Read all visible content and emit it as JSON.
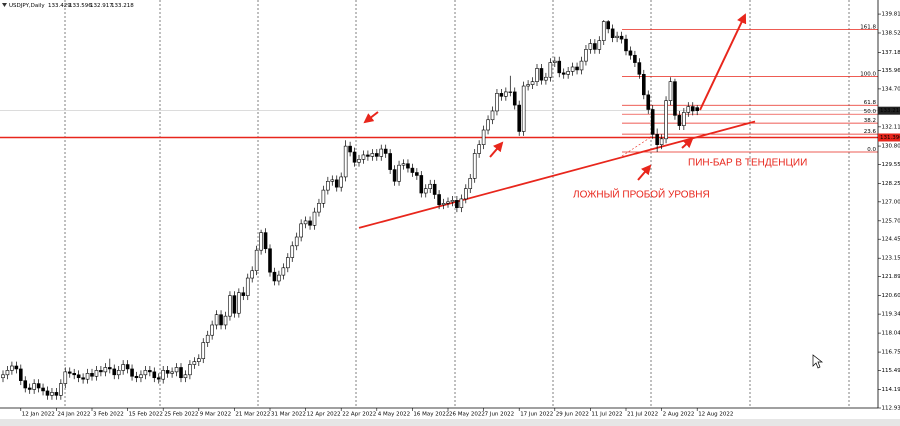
{
  "chart_data": {
    "type": "candlestick",
    "title": "USDJPY,Daily",
    "quote": [
      "133.429",
      "133.596",
      "132.917",
      "133.218"
    ],
    "categories": [
      null,
      null,
      null,
      null,
      "12 Jan 2022",
      null,
      null,
      null,
      null,
      null,
      null,
      null,
      "24 Jan 2022",
      null,
      null,
      null,
      null,
      null,
      null,
      null,
      "3 Feb 2022",
      null,
      null,
      null,
      null,
      null,
      null,
      null,
      "15 Feb 2022",
      null,
      null,
      null,
      null,
      null,
      null,
      null,
      "25 Feb 2022",
      null,
      null,
      null,
      null,
      null,
      null,
      null,
      "9 Mar 2022",
      null,
      null,
      null,
      null,
      null,
      null,
      null,
      "21 Mar 2022",
      null,
      null,
      null,
      null,
      null,
      null,
      null,
      "31 Mar 2022",
      null,
      null,
      null,
      null,
      null,
      null,
      null,
      "12 Apr 2022",
      null,
      null,
      null,
      null,
      null,
      null,
      null,
      "22 Apr 2022",
      null,
      null,
      null,
      null,
      null,
      null,
      null,
      "4 May 2022",
      null,
      null,
      null,
      null,
      null,
      null,
      null,
      "16 May 2022",
      null,
      null,
      null,
      null,
      null,
      null,
      null,
      "26 May 2022",
      null,
      null,
      null,
      null,
      null,
      null,
      null,
      "7 Jun 2022",
      null,
      null,
      null,
      null,
      null,
      null,
      null,
      "17 Jun 2022",
      null,
      null,
      null,
      null,
      null,
      null,
      null,
      "29 Jun 2022",
      null,
      null,
      null,
      null,
      null,
      null,
      null,
      "11 Jul 2022",
      null,
      null,
      null,
      null,
      null,
      null,
      null,
      "21 Jul 2022",
      null,
      null,
      null,
      null,
      null,
      null,
      null,
      "2 Aug 2022",
      null,
      null,
      null,
      null,
      null,
      null,
      null,
      "12 Aug 2022"
    ],
    "open": [
      115.0,
      115.2,
      115.5,
      115.8,
      115.6,
      114.8,
      114.3,
      114.2,
      114.6,
      114.3,
      114.1,
      113.8,
      114.0,
      113.8,
      114.6,
      115.4,
      115.3,
      115.2,
      115.0,
      114.9,
      115.3,
      115.1,
      115.5,
      115.4,
      115.7,
      115.6,
      115.2,
      115.5,
      115.9,
      115.6,
      115.1,
      115.0,
      115.2,
      115.5,
      115.4,
      115.0,
      114.9,
      115.5,
      115.3,
      115.4,
      115.7,
      115.0,
      115.2,
      115.9,
      116.1,
      116.3,
      117.4,
      117.9,
      118.6,
      119.3,
      118.6,
      119.2,
      120.6,
      119.4,
      120.8,
      120.6,
      121.8,
      122.3,
      123.7,
      124.9,
      123.8,
      122.2,
      121.6,
      122.0,
      122.5,
      123.2,
      124.0,
      124.6,
      125.5,
      125.7,
      125.4,
      126.3,
      126.9,
      127.8,
      128.4,
      128.5,
      128.0,
      128.7,
      130.8,
      130.4,
      129.7,
      129.9,
      130.2,
      130.1,
      130.3,
      130.1,
      130.6,
      130.3,
      129.2,
      128.4,
      129.5,
      129.6,
      129.3,
      129.0,
      128.8,
      127.6,
      127.9,
      128.2,
      127.5,
      126.8,
      126.9,
      127.0,
      127.1,
      126.6,
      127.2,
      127.9,
      128.6,
      130.3,
      130.9,
      131.9,
      132.6,
      133.2,
      134.4,
      134.2,
      134.5,
      134.5,
      133.6,
      131.8,
      134.9,
      135.0,
      135.2,
      136.1,
      135.3,
      135.5,
      136.5,
      136.6,
      135.8,
      135.7,
      135.9,
      136.2,
      136.0,
      136.6,
      137.4,
      137.8,
      137.4,
      138.0,
      139.3,
      138.8,
      138.2,
      138.3,
      138.1,
      137.3,
      137.0,
      136.5,
      135.7,
      134.3,
      133.3,
      131.6,
      130.9,
      131.3,
      133.9,
      135.2,
      132.9,
      132.2,
      133.1,
      133.5,
      133.429
    ],
    "high": [
      115.5,
      115.8,
      116.1,
      116.1,
      115.9,
      115.1,
      114.6,
      114.9,
      114.9,
      114.6,
      114.4,
      114.3,
      114.3,
      114.9,
      115.7,
      115.7,
      115.6,
      115.5,
      115.3,
      115.6,
      115.6,
      115.8,
      115.8,
      116.0,
      116.3,
      115.9,
      115.8,
      116.2,
      116.2,
      115.9,
      115.4,
      115.5,
      115.8,
      115.8,
      115.7,
      115.3,
      115.8,
      115.8,
      115.7,
      116.0,
      116.0,
      115.5,
      116.2,
      116.4,
      116.6,
      117.7,
      118.2,
      118.9,
      119.6,
      119.6,
      119.5,
      120.9,
      120.9,
      121.1,
      121.2,
      122.1,
      122.6,
      124.0,
      125.1,
      125.2,
      124.1,
      122.5,
      122.3,
      122.8,
      123.5,
      124.3,
      124.9,
      125.8,
      126.0,
      126.0,
      126.6,
      127.2,
      128.1,
      128.7,
      128.8,
      128.8,
      129.0,
      131.2,
      131.1,
      130.7,
      130.2,
      130.5,
      130.5,
      130.6,
      130.6,
      130.9,
      130.9,
      130.6,
      129.5,
      129.8,
      129.9,
      129.9,
      129.6,
      129.3,
      129.1,
      128.2,
      128.5,
      128.5,
      127.8,
      127.2,
      127.3,
      127.4,
      127.4,
      127.5,
      128.2,
      128.9,
      130.6,
      131.2,
      132.2,
      132.9,
      133.5,
      134.7,
      134.7,
      134.8,
      135.6,
      134.8,
      133.9,
      135.2,
      135.3,
      135.5,
      136.4,
      136.4,
      135.8,
      136.8,
      136.9,
      136.9,
      136.1,
      136.2,
      136.5,
      136.5,
      136.9,
      137.7,
      138.1,
      138.1,
      138.3,
      139.4,
      139.4,
      139.1,
      138.6,
      138.6,
      138.4,
      137.6,
      137.3,
      136.8,
      136.0,
      134.6,
      133.6,
      132.0,
      131.6,
      134.2,
      135.5,
      135.4,
      133.2,
      133.4,
      133.8,
      133.8,
      133.596
    ],
    "low": [
      114.7,
      114.9,
      115.2,
      115.3,
      114.5,
      114.0,
      113.9,
      113.9,
      114.0,
      113.8,
      113.5,
      113.5,
      113.5,
      113.5,
      114.3,
      115.0,
      114.9,
      114.7,
      114.6,
      114.6,
      114.8,
      114.8,
      115.1,
      115.1,
      115.3,
      114.9,
      114.9,
      115.2,
      115.3,
      114.8,
      114.7,
      114.7,
      114.9,
      115.1,
      114.7,
      114.6,
      114.6,
      115.0,
      115.0,
      115.1,
      114.7,
      114.7,
      114.9,
      115.6,
      115.8,
      116.0,
      117.1,
      117.6,
      118.3,
      118.3,
      118.3,
      118.9,
      119.1,
      119.1,
      120.3,
      120.3,
      121.5,
      122.0,
      123.4,
      123.5,
      121.9,
      121.3,
      121.3,
      121.7,
      122.2,
      122.9,
      123.7,
      124.3,
      125.2,
      125.1,
      125.1,
      126.0,
      126.6,
      127.5,
      128.1,
      127.7,
      127.7,
      128.4,
      130.1,
      129.4,
      129.4,
      129.6,
      129.8,
      129.8,
      129.8,
      129.8,
      130.0,
      128.9,
      128.1,
      128.1,
      129.2,
      129.0,
      128.7,
      128.5,
      127.3,
      127.3,
      127.6,
      127.2,
      126.5,
      126.5,
      126.6,
      126.7,
      126.3,
      126.3,
      126.9,
      127.6,
      128.3,
      130.0,
      130.6,
      131.6,
      132.3,
      132.9,
      133.9,
      133.9,
      134.2,
      133.3,
      131.5,
      131.5,
      134.6,
      134.7,
      134.9,
      135.0,
      135.0,
      135.2,
      136.2,
      135.5,
      135.4,
      135.4,
      135.6,
      135.7,
      135.7,
      136.3,
      137.1,
      137.1,
      137.1,
      137.7,
      138.5,
      137.9,
      137.9,
      137.8,
      137.0,
      136.7,
      136.2,
      135.4,
      134.0,
      133.0,
      131.3,
      130.4,
      130.6,
      131.0,
      133.6,
      132.6,
      131.9,
      131.9,
      132.8,
      132.9,
      132.917
    ],
    "close": [
      115.2,
      115.5,
      115.8,
      115.6,
      114.8,
      114.3,
      114.2,
      114.6,
      114.3,
      114.1,
      113.8,
      114.0,
      113.8,
      114.6,
      115.4,
      115.3,
      115.2,
      115.0,
      114.9,
      115.3,
      115.1,
      115.5,
      115.4,
      115.7,
      115.6,
      115.2,
      115.5,
      115.9,
      115.6,
      115.1,
      115.0,
      115.2,
      115.5,
      115.4,
      115.0,
      114.9,
      115.5,
      115.3,
      115.4,
      115.7,
      115.0,
      115.2,
      115.9,
      116.1,
      116.3,
      117.4,
      117.9,
      118.6,
      119.3,
      118.6,
      119.2,
      120.6,
      119.4,
      120.8,
      120.6,
      121.8,
      122.3,
      123.7,
      124.9,
      123.8,
      122.2,
      121.6,
      122.0,
      122.5,
      123.2,
      124.0,
      124.6,
      125.5,
      125.7,
      125.4,
      126.3,
      126.9,
      127.8,
      128.4,
      128.5,
      128.0,
      128.7,
      130.8,
      130.4,
      129.7,
      129.9,
      130.2,
      130.1,
      130.3,
      130.1,
      130.6,
      130.3,
      129.2,
      128.4,
      129.5,
      129.6,
      129.3,
      129.0,
      128.8,
      127.6,
      127.9,
      128.2,
      127.5,
      126.8,
      126.9,
      127.0,
      127.1,
      126.6,
      127.2,
      127.9,
      128.6,
      130.3,
      130.9,
      131.9,
      132.6,
      133.2,
      134.4,
      134.2,
      134.5,
      134.5,
      133.6,
      131.8,
      134.9,
      135.0,
      135.2,
      136.1,
      135.3,
      135.5,
      136.5,
      136.6,
      135.8,
      135.7,
      135.9,
      136.2,
      136.0,
      136.6,
      137.4,
      137.8,
      137.4,
      138.0,
      139.3,
      138.8,
      138.2,
      138.3,
      138.1,
      137.3,
      137.0,
      136.5,
      135.7,
      134.3,
      133.3,
      131.6,
      130.9,
      131.3,
      133.9,
      135.2,
      132.9,
      132.2,
      133.1,
      133.5,
      133.2,
      133.218
    ],
    "ylim": [
      112.935,
      140.77
    ],
    "yticks": [
      112.935,
      114.195,
      115.495,
      {
        "value": 116.75,
        "label": "116.750"
      },
      118.045,
      {
        "value": 119.34,
        "label": "119.340"
      },
      {
        "value": 120.6,
        "label": "120.600"
      },
      121.895,
      123.155,
      {
        "value": 124.45,
        "label": "124.450"
      },
      125.705,
      {
        "value": 127,
        "label": "127.000"
      },
      128.255,
      {
        "value": 129.55,
        "label": "129.550"
      },
      130.805,
      132.115,
      134.705,
      {
        "value": 135.96,
        "label": "135.960"
      },
      137.185,
      {
        "value": 138.52,
        "label": "138.520"
      },
      {
        "value": 139.81,
        "label": "139.810"
      }
    ],
    "level": {
      "value": 131.39,
      "label": "131.390"
    },
    "fib_levels": [
      {
        "value": 138.75,
        "label": "161.8"
      },
      {
        "value": 135.56,
        "label": "100.0"
      },
      {
        "value": 133.59,
        "label": "61.8"
      },
      {
        "value": 132.98,
        "label": "50.0"
      },
      {
        "value": 132.37,
        "label": "38.2"
      },
      {
        "value": 131.62,
        "label": "23.6"
      },
      {
        "value": 130.4,
        "label": "0.0"
      }
    ],
    "trendline": {
      "x": [
        80,
        169
      ],
      "y": [
        125.22,
        132.48
      ]
    },
    "bull_color": "#ffffff",
    "bear_color": "#000000",
    "line_color": "#e8261c",
    "annotations": [
      "ЛОЖНЫЙ ПРОБОЙ УРОВНЯ",
      "ПИН-БАР В ТЕНДЕНЦИИ"
    ]
  }
}
